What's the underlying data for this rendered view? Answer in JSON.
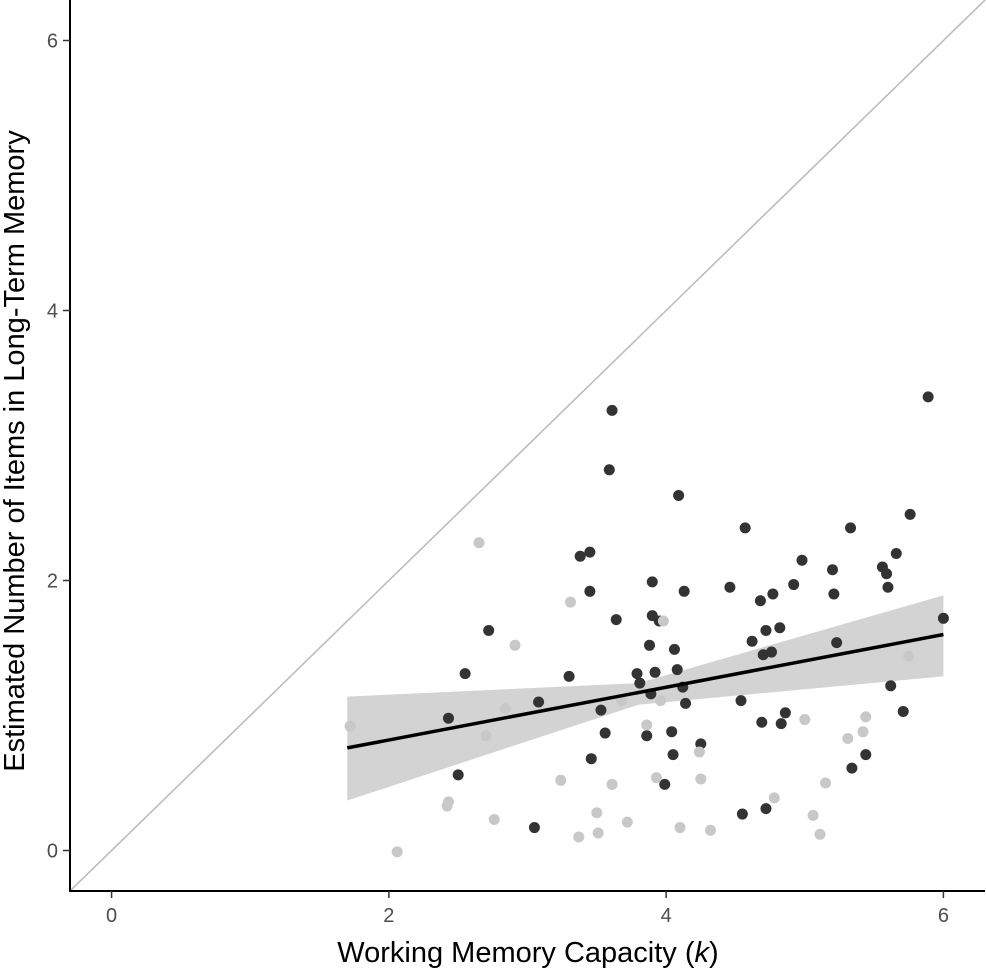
{
  "chart_data": {
    "type": "scatter",
    "title": "",
    "xlabel_main": "Working Memory Capacity (",
    "xlabel_var": "k",
    "xlabel_end": ")",
    "ylabel": "Estimated Number of Items in Long-Term Memory",
    "xlim": [
      -0.3,
      6.3
    ],
    "ylim": [
      -0.3,
      6.3
    ],
    "x_ticks": [
      0,
      2,
      4,
      6
    ],
    "y_ticks": [
      0,
      2,
      4,
      6
    ],
    "x_tick_labels": [
      "0",
      "2",
      "4",
      "6"
    ],
    "y_tick_labels": [
      "0",
      "2",
      "4",
      "6"
    ],
    "grid": false,
    "identity_line": {
      "from": [
        -0.3,
        -0.3
      ],
      "to": [
        6.3,
        6.3
      ],
      "color": "#bdbdbd"
    },
    "regression": {
      "line": [
        [
          1.7,
          0.76
        ],
        [
          6.0,
          1.6
        ]
      ],
      "ci_lower": [
        [
          1.7,
          0.37
        ],
        [
          3.8,
          1.08
        ],
        [
          6.0,
          1.29
        ]
      ],
      "ci_upper": [
        [
          1.7,
          1.14
        ],
        [
          3.8,
          1.24
        ],
        [
          6.0,
          1.89
        ]
      ],
      "line_color": "#000000",
      "band_color": "#d3d3d3"
    },
    "series": [
      {
        "color": "#333333",
        "points": [
          [
            2.43,
            0.98
          ],
          [
            2.5,
            0.56
          ],
          [
            2.55,
            1.31
          ],
          [
            2.72,
            1.63
          ],
          [
            3.05,
            0.17
          ],
          [
            3.08,
            1.1
          ],
          [
            3.3,
            1.29
          ],
          [
            3.38,
            2.18
          ],
          [
            3.45,
            2.21
          ],
          [
            3.45,
            1.92
          ],
          [
            3.46,
            0.68
          ],
          [
            3.53,
            1.04
          ],
          [
            3.56,
            0.87
          ],
          [
            3.59,
            2.82
          ],
          [
            3.61,
            3.26
          ],
          [
            3.64,
            1.71
          ],
          [
            3.79,
            1.31
          ],
          [
            3.81,
            1.24
          ],
          [
            3.86,
            0.85
          ],
          [
            3.88,
            1.52
          ],
          [
            3.89,
            1.16
          ],
          [
            3.9,
            1.99
          ],
          [
            3.9,
            1.74
          ],
          [
            3.92,
            1.32
          ],
          [
            3.95,
            1.7
          ],
          [
            3.99,
            0.49
          ],
          [
            4.04,
            0.88
          ],
          [
            4.05,
            0.71
          ],
          [
            4.06,
            1.49
          ],
          [
            4.08,
            1.34
          ],
          [
            4.09,
            2.63
          ],
          [
            4.12,
            1.21
          ],
          [
            4.13,
            1.92
          ],
          [
            4.14,
            1.09
          ],
          [
            4.25,
            0.79
          ],
          [
            4.46,
            1.95
          ],
          [
            4.54,
            1.11
          ],
          [
            4.55,
            0.27
          ],
          [
            4.57,
            2.39
          ],
          [
            4.62,
            1.55
          ],
          [
            4.68,
            1.85
          ],
          [
            4.69,
            0.95
          ],
          [
            4.7,
            1.45
          ],
          [
            4.72,
            0.31
          ],
          [
            4.72,
            1.63
          ],
          [
            4.76,
            1.47
          ],
          [
            4.77,
            1.9
          ],
          [
            4.82,
            1.65
          ],
          [
            4.83,
            0.94
          ],
          [
            4.86,
            1.02
          ],
          [
            4.92,
            1.97
          ],
          [
            4.98,
            2.15
          ],
          [
            5.2,
            2.08
          ],
          [
            5.21,
            1.9
          ],
          [
            5.23,
            1.54
          ],
          [
            5.33,
            2.39
          ],
          [
            5.34,
            0.61
          ],
          [
            5.44,
            0.71
          ],
          [
            5.56,
            2.1
          ],
          [
            5.59,
            2.05
          ],
          [
            5.6,
            1.95
          ],
          [
            5.62,
            1.22
          ],
          [
            5.66,
            2.2
          ],
          [
            5.71,
            1.03
          ],
          [
            5.76,
            2.49
          ],
          [
            5.89,
            3.36
          ],
          [
            6.0,
            1.72
          ]
        ]
      },
      {
        "color": "#c8c8c8",
        "points": [
          [
            1.72,
            0.92
          ],
          [
            2.06,
            -0.01
          ],
          [
            2.42,
            0.33
          ],
          [
            2.43,
            0.36
          ],
          [
            2.65,
            2.28
          ],
          [
            2.7,
            0.85
          ],
          [
            2.76,
            0.23
          ],
          [
            2.84,
            1.05
          ],
          [
            2.91,
            1.52
          ],
          [
            3.24,
            0.52
          ],
          [
            3.31,
            1.84
          ],
          [
            3.37,
            0.1
          ],
          [
            3.5,
            0.28
          ],
          [
            3.51,
            0.13
          ],
          [
            3.61,
            0.49
          ],
          [
            3.68,
            1.11
          ],
          [
            3.72,
            0.21
          ],
          [
            3.86,
            0.93
          ],
          [
            3.93,
            0.54
          ],
          [
            3.96,
            1.11
          ],
          [
            3.98,
            1.7
          ],
          [
            4.1,
            0.17
          ],
          [
            4.24,
            0.73
          ],
          [
            4.25,
            0.53
          ],
          [
            4.32,
            0.15
          ],
          [
            4.78,
            0.39
          ],
          [
            5.0,
            0.97
          ],
          [
            5.06,
            0.26
          ],
          [
            5.11,
            0.12
          ],
          [
            5.15,
            0.5
          ],
          [
            5.31,
            0.83
          ],
          [
            5.42,
            0.88
          ],
          [
            5.44,
            0.99
          ],
          [
            5.75,
            1.44
          ]
        ]
      }
    ]
  }
}
